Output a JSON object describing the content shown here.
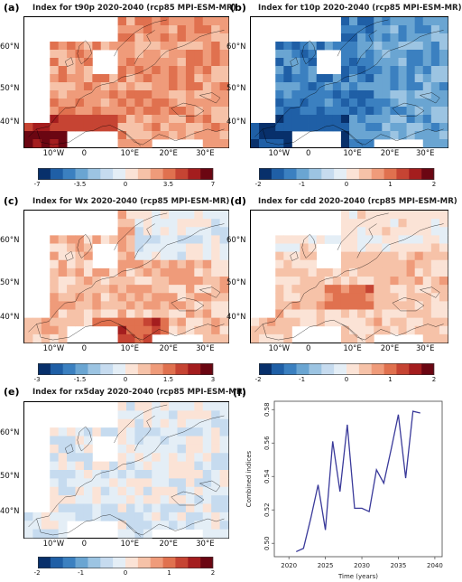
{
  "colors": {
    "diverging": [
      "#08306b",
      "#1f5fa6",
      "#3b80c0",
      "#6aa5d2",
      "#9cc4e2",
      "#c6dbef",
      "#e4eef6",
      "#fbe3d6",
      "#f6c2a8",
      "#ef9b7a",
      "#e0714f",
      "#c64433",
      "#a41d1e",
      "#6b0612"
    ],
    "coast": "#000000",
    "line": "#3a3a9a"
  },
  "map_ticks": {
    "lat": [
      "60°N",
      "50°N",
      "40°N"
    ],
    "lon": [
      "10°W",
      "0",
      "10°E",
      "20°E",
      "30°E"
    ]
  },
  "panels": [
    {
      "label": "(a)",
      "title": "Index for  t90p 2020-2040  (rcp85 MPI-ESM-MR)",
      "pattern": "warm",
      "cbar_ticks": [
        "-7",
        "-3.5",
        "0",
        "3.5",
        "7"
      ],
      "cbar_min": -7,
      "cbar_max": 7
    },
    {
      "label": "(b)",
      "title": "Index for  t10p 2020-2040  (rcp85 MPI-ESM-MR)",
      "pattern": "cold",
      "cbar_ticks": [
        "-2",
        "-1",
        "0",
        "1",
        "2"
      ],
      "cbar_min": -2,
      "cbar_max": 2
    },
    {
      "label": "(c)",
      "title": "Index for  Wx 2020-2040  (rcp85 MPI-ESM-MR)",
      "pattern": "mixed_warm",
      "cbar_ticks": [
        "-3",
        "-1.5",
        "0",
        "1.5",
        "3"
      ],
      "cbar_min": -3,
      "cbar_max": 3
    },
    {
      "label": "(d)",
      "title": "Index for  cdd 2020-2040  (rcp85 MPI-ESM-MR)",
      "pattern": "mild_warm",
      "cbar_ticks": [
        "-2",
        "-1",
        "0",
        "1",
        "2"
      ],
      "cbar_min": -2,
      "cbar_max": 2
    },
    {
      "label": "(e)",
      "title": "Index for  rx5day 2020-2040  (rcp85 MPI-ESM-MR)",
      "pattern": "neutral",
      "cbar_ticks": [
        "-2",
        "-1",
        "0",
        "1",
        "2"
      ],
      "cbar_min": -2,
      "cbar_max": 2
    }
  ],
  "line_panel": {
    "label": "(f)",
    "chart_data": {
      "type": "line",
      "xlabel": "Time (years)",
      "ylabel": "Combined indices",
      "xlim": [
        2018,
        2041
      ],
      "ylim": [
        0.492,
        0.585
      ],
      "xticks": [
        2020,
        2025,
        2030,
        2035,
        2040
      ],
      "yticks": [
        "0.50",
        "0.52",
        "0.54",
        "0.56",
        "0.58"
      ],
      "x": [
        2021,
        2022,
        2023,
        2024,
        2025,
        2026,
        2027,
        2028,
        2029,
        2030,
        2031,
        2032,
        2033,
        2034,
        2035,
        2036,
        2037,
        2038
      ],
      "y": [
        0.495,
        0.497,
        0.515,
        0.535,
        0.508,
        0.561,
        0.531,
        0.571,
        0.521,
        0.521,
        0.519,
        0.544,
        0.536,
        0.556,
        0.577,
        0.539,
        0.579,
        0.578
      ],
      "grid": false
    }
  }
}
